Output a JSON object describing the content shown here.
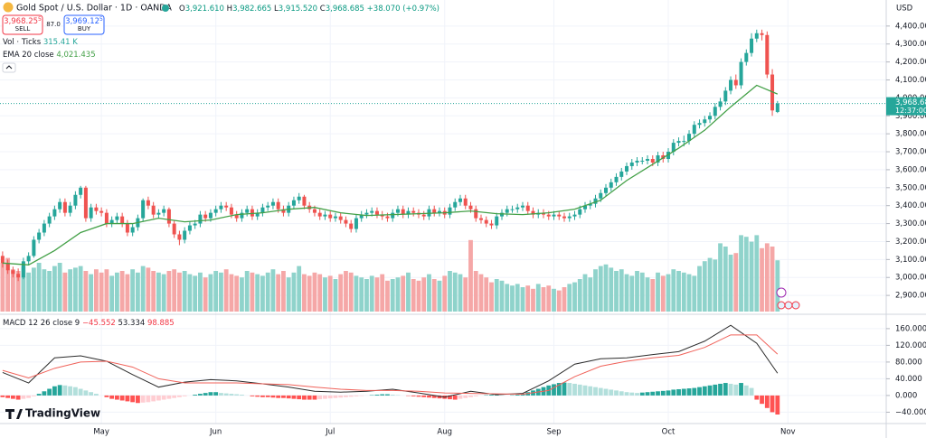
{
  "chart_data": {
    "type": "candlestick",
    "title": "Gold Spot / U.S. Dollar · 1D · OANDA",
    "currency": "USD",
    "ohlc_legend": {
      "letters": [
        "O",
        "H",
        "L",
        "C"
      ],
      "open": "3,921.610",
      "high": "3,982.665",
      "low": "3,915.520",
      "close": "3,968.685",
      "change": "+38.070 (+0.97%)"
    },
    "trade": {
      "sell_price": "3,968.25",
      "sell_pip": "5",
      "sell_label": "SELL",
      "spread": "87.0",
      "buy_price": "3,969.12",
      "buy_pip": "5",
      "buy_label": "BUY"
    },
    "last_price_label": "3,968.685",
    "countdown": "12:37:00",
    "up_color": "#26a69a",
    "down_color": "#ef5350",
    "grid": true,
    "xlim": [
      -0.5,
      169.9
    ],
    "xticks": [
      {
        "value": 19,
        "label": "May"
      },
      {
        "value": 41,
        "label": "Jun"
      },
      {
        "value": 63,
        "label": "Jul"
      },
      {
        "value": 85,
        "label": "Aug"
      },
      {
        "value": 106,
        "label": "Sep"
      },
      {
        "value": 128,
        "label": "Oct"
      },
      {
        "value": 151,
        "label": "Nov"
      }
    ],
    "ylim": [
      2795,
      4545
    ],
    "yticks": [
      {
        "value": 2900,
        "label": "2,900.000"
      },
      {
        "value": 3000,
        "label": "3,000.000"
      },
      {
        "value": 3100,
        "label": "3,100.000"
      },
      {
        "value": 3200,
        "label": "3,200.000"
      },
      {
        "value": 3300,
        "label": "3,300.000"
      },
      {
        "value": 3400,
        "label": "3,400.000"
      },
      {
        "value": 3500,
        "label": "3,500.000"
      },
      {
        "value": 3600,
        "label": "3,600.000"
      },
      {
        "value": 3700,
        "label": "3,700.000"
      },
      {
        "value": 3800,
        "label": "3,800.000"
      },
      {
        "value": 3900,
        "label": "3,900.000"
      },
      {
        "value": 4000,
        "label": "4,000.000"
      },
      {
        "value": 4100,
        "label": "4,100.000"
      },
      {
        "value": 4200,
        "label": "4,200.000"
      },
      {
        "value": 4300,
        "label": "4,300.000"
      },
      {
        "value": 4400,
        "label": "4,400.000"
      }
    ],
    "candles": {
      "open": [
        3120,
        3080,
        3040,
        3020,
        3000,
        3090,
        3120,
        3210,
        3250,
        3300,
        3340,
        3380,
        3420,
        3360,
        3400,
        3460,
        3500,
        3330,
        3390,
        3370,
        3360,
        3300,
        3320,
        3340,
        3300,
        3250,
        3280,
        3330,
        3430,
        3400,
        3350,
        3360,
        3380,
        3300,
        3240,
        3210,
        3260,
        3290,
        3300,
        3350,
        3330,
        3360,
        3380,
        3400,
        3390,
        3350,
        3330,
        3360,
        3380,
        3340,
        3360,
        3390,
        3400,
        3420,
        3380,
        3360,
        3400,
        3430,
        3450,
        3400,
        3380,
        3360,
        3340,
        3350,
        3330,
        3340,
        3320,
        3300,
        3270,
        3330,
        3350,
        3360,
        3370,
        3350,
        3340,
        3330,
        3360,
        3380,
        3350,
        3370,
        3360,
        3350,
        3340,
        3380,
        3360,
        3370,
        3350,
        3390,
        3420,
        3440,
        3400,
        3380,
        3330,
        3320,
        3300,
        3290,
        3340,
        3360,
        3380,
        3380,
        3390,
        3400,
        3370,
        3350,
        3360,
        3350,
        3340,
        3350,
        3340,
        3330,
        3340,
        3350,
        3380,
        3400,
        3410,
        3440,
        3470,
        3500,
        3530,
        3560,
        3590,
        3620,
        3640,
        3650,
        3650,
        3660,
        3640,
        3680,
        3660,
        3700,
        3750,
        3760,
        3760,
        3800,
        3850,
        3860,
        3880,
        3900,
        3950,
        3980,
        4040,
        4100,
        4070,
        4200,
        4250,
        4330,
        4360,
        4350,
        4130,
        3921.61
      ],
      "high": [
        3145,
        3100,
        3060,
        3050,
        3110,
        3140,
        3230,
        3270,
        3320,
        3360,
        3400,
        3440,
        3440,
        3420,
        3480,
        3510,
        3510,
        3410,
        3410,
        3390,
        3380,
        3340,
        3360,
        3360,
        3320,
        3300,
        3350,
        3440,
        3450,
        3420,
        3380,
        3400,
        3390,
        3320,
        3260,
        3280,
        3310,
        3320,
        3370,
        3370,
        3380,
        3400,
        3420,
        3420,
        3410,
        3370,
        3380,
        3400,
        3400,
        3380,
        3410,
        3420,
        3440,
        3440,
        3400,
        3420,
        3450,
        3470,
        3460,
        3420,
        3400,
        3380,
        3370,
        3370,
        3360,
        3360,
        3340,
        3320,
        3350,
        3370,
        3380,
        3390,
        3390,
        3370,
        3360,
        3380,
        3400,
        3400,
        3390,
        3390,
        3380,
        3370,
        3400,
        3400,
        3390,
        3390,
        3410,
        3440,
        3460,
        3460,
        3420,
        3400,
        3350,
        3340,
        3320,
        3360,
        3380,
        3400,
        3400,
        3410,
        3420,
        3420,
        3390,
        3380,
        3380,
        3370,
        3370,
        3370,
        3360,
        3360,
        3370,
        3400,
        3420,
        3430,
        3460,
        3490,
        3520,
        3550,
        3580,
        3610,
        3640,
        3660,
        3670,
        3670,
        3680,
        3680,
        3700,
        3700,
        3720,
        3770,
        3780,
        3790,
        3820,
        3870,
        3880,
        3900,
        3920,
        3970,
        4000,
        4060,
        4120,
        4130,
        4220,
        4270,
        4360,
        4380,
        4380,
        4370,
        4160,
        3982.665
      ],
      "low": [
        3055,
        3020,
        3000,
        2980,
        2990,
        3070,
        3110,
        3190,
        3230,
        3280,
        3320,
        3360,
        3340,
        3340,
        3380,
        3440,
        3310,
        3310,
        3350,
        3340,
        3280,
        3280,
        3300,
        3280,
        3230,
        3230,
        3260,
        3310,
        3380,
        3330,
        3330,
        3340,
        3280,
        3220,
        3180,
        3190,
        3240,
        3270,
        3280,
        3310,
        3310,
        3340,
        3360,
        3370,
        3330,
        3310,
        3310,
        3340,
        3320,
        3320,
        3340,
        3370,
        3380,
        3360,
        3340,
        3340,
        3380,
        3410,
        3380,
        3360,
        3340,
        3320,
        3320,
        3310,
        3310,
        3300,
        3280,
        3250,
        3250,
        3310,
        3330,
        3340,
        3330,
        3320,
        3310,
        3310,
        3340,
        3330,
        3330,
        3340,
        3330,
        3320,
        3320,
        3340,
        3340,
        3330,
        3330,
        3370,
        3400,
        3380,
        3360,
        3310,
        3300,
        3280,
        3270,
        3270,
        3320,
        3340,
        3360,
        3360,
        3370,
        3350,
        3330,
        3330,
        3330,
        3320,
        3320,
        3320,
        3310,
        3310,
        3320,
        3330,
        3360,
        3380,
        3390,
        3420,
        3450,
        3480,
        3510,
        3540,
        3570,
        3600,
        3620,
        3630,
        3630,
        3620,
        3620,
        3640,
        3640,
        3680,
        3730,
        3730,
        3740,
        3780,
        3830,
        3840,
        3860,
        3880,
        3930,
        3960,
        4020,
        4050,
        4050,
        4180,
        4230,
        4310,
        4320,
        4110,
        3900,
        3915.52
      ],
      "close": [
        3080,
        3040,
        3020,
        3000,
        3090,
        3120,
        3210,
        3250,
        3300,
        3340,
        3380,
        3420,
        3360,
        3400,
        3460,
        3500,
        3330,
        3390,
        3370,
        3360,
        3300,
        3320,
        3340,
        3300,
        3250,
        3280,
        3330,
        3430,
        3400,
        3350,
        3360,
        3380,
        3300,
        3240,
        3210,
        3260,
        3290,
        3300,
        3350,
        3330,
        3360,
        3380,
        3400,
        3390,
        3350,
        3330,
        3360,
        3380,
        3340,
        3360,
        3390,
        3400,
        3420,
        3380,
        3360,
        3400,
        3430,
        3450,
        3400,
        3380,
        3360,
        3340,
        3350,
        3330,
        3340,
        3320,
        3300,
        3270,
        3330,
        3350,
        3360,
        3370,
        3350,
        3340,
        3330,
        3360,
        3380,
        3350,
        3370,
        3360,
        3350,
        3340,
        3380,
        3360,
        3370,
        3350,
        3390,
        3420,
        3440,
        3400,
        3380,
        3330,
        3320,
        3300,
        3290,
        3340,
        3360,
        3380,
        3380,
        3390,
        3400,
        3370,
        3350,
        3360,
        3350,
        3340,
        3350,
        3340,
        3330,
        3340,
        3350,
        3380,
        3400,
        3410,
        3440,
        3470,
        3500,
        3530,
        3560,
        3590,
        3620,
        3640,
        3650,
        3650,
        3660,
        3640,
        3680,
        3660,
        3700,
        3750,
        3760,
        3760,
        3800,
        3850,
        3860,
        3880,
        3900,
        3950,
        3980,
        4040,
        4100,
        4070,
        4200,
        4250,
        4330,
        4360,
        4350,
        4130,
        3930,
        3968.685
      ]
    },
    "volume": {
      "name": "Vol · Ticks",
      "last_label": "315.41 K",
      "ylim": [
        0,
        600
      ],
      "up_color": "#8fd3cb",
      "down_color": "#f5a7a7",
      "values": [
        300,
        330,
        260,
        250,
        280,
        240,
        270,
        300,
        260,
        250,
        280,
        300,
        240,
        260,
        270,
        280,
        250,
        230,
        260,
        240,
        260,
        220,
        240,
        250,
        230,
        260,
        240,
        280,
        270,
        250,
        240,
        230,
        250,
        260,
        240,
        250,
        230,
        220,
        240,
        210,
        230,
        250,
        240,
        260,
        230,
        220,
        210,
        250,
        240,
        230,
        220,
        240,
        260,
        230,
        250,
        210,
        240,
        280,
        230,
        220,
        240,
        230,
        210,
        220,
        200,
        230,
        250,
        240,
        220,
        210,
        200,
        220,
        210,
        230,
        190,
        200,
        210,
        220,
        240,
        200,
        190,
        210,
        230,
        200,
        190,
        220,
        250,
        240,
        230,
        210,
        440,
        250,
        230,
        210,
        180,
        200,
        190,
        170,
        160,
        170,
        150,
        160,
        140,
        170,
        150,
        160,
        140,
        130,
        150,
        170,
        180,
        200,
        230,
        210,
        260,
        280,
        290,
        270,
        250,
        260,
        230,
        220,
        250,
        240,
        210,
        200,
        240,
        220,
        230,
        260,
        250,
        240,
        230,
        220,
        280,
        310,
        330,
        320,
        420,
        400,
        350,
        360,
        470,
        460,
        430,
        470,
        390,
        420,
        400,
        315.41
      ]
    },
    "ema": {
      "name": "EMA 20 close",
      "last_label": "4,021.435",
      "color": "#43a047",
      "x": [
        0,
        5,
        10,
        15,
        20,
        25,
        30,
        35,
        40,
        45,
        50,
        55,
        60,
        65,
        70,
        75,
        80,
        85,
        90,
        95,
        100,
        105,
        110,
        115,
        120,
        125,
        130,
        135,
        140,
        145,
        149
      ],
      "values": [
        3080,
        3070,
        3150,
        3250,
        3300,
        3300,
        3330,
        3310,
        3320,
        3350,
        3360,
        3380,
        3390,
        3360,
        3345,
        3350,
        3355,
        3360,
        3370,
        3355,
        3350,
        3360,
        3380,
        3430,
        3540,
        3630,
        3720,
        3820,
        3950,
        4070,
        4021.435
      ]
    },
    "macd": {
      "name": "MACD 12 26 close 9",
      "hist_label": "−45.552",
      "macd_label": "53.334",
      "signal_label": "98.885",
      "ylim": [
        -65,
        190
      ],
      "yticks": [
        {
          "value": 160,
          "label": "160.000"
        },
        {
          "value": 120,
          "label": "120.000"
        },
        {
          "value": 80,
          "label": "80.000"
        },
        {
          "value": 40,
          "label": "40.000"
        },
        {
          "value": 0,
          "label": "0.000"
        },
        {
          "value": -40,
          "label": "−40.000"
        }
      ],
      "x": [
        0,
        5,
        10,
        15,
        20,
        25,
        30,
        35,
        40,
        45,
        50,
        55,
        60,
        65,
        70,
        75,
        80,
        85,
        90,
        95,
        100,
        105,
        110,
        115,
        120,
        125,
        130,
        135,
        140,
        145,
        149
      ],
      "macd_color": "#2b2b2b",
      "signal_color": "#f0625a",
      "hist_colors": {
        "rise_pos": "#26a69a",
        "fall_pos": "#b2dfdb",
        "fall_neg": "#ff5252",
        "rise_neg": "#ffcdd2"
      },
      "macd_values": [
        55,
        30,
        90,
        95,
        82,
        50,
        20,
        32,
        38,
        35,
        28,
        20,
        10,
        8,
        10,
        15,
        6,
        -4,
        10,
        2,
        5,
        35,
        75,
        88,
        90,
        98,
        105,
        130,
        168,
        125,
        53.334
      ],
      "signal_values": [
        60,
        42,
        65,
        80,
        82,
        68,
        40,
        30,
        30,
        30,
        28,
        26,
        20,
        15,
        12,
        12,
        10,
        6,
        5,
        4,
        3,
        12,
        45,
        70,
        82,
        90,
        96,
        115,
        145,
        145,
        98.885
      ],
      "histogram": [
        -4,
        -6,
        -8,
        -10,
        -8,
        -6,
        -2,
        4,
        10,
        16,
        22,
        25,
        24,
        22,
        20,
        16,
        12,
        8,
        4,
        0,
        -4,
        -8,
        -10,
        -12,
        -14,
        -16,
        -18,
        -17,
        -16,
        -14,
        -12,
        -10,
        -8,
        -6,
        -4,
        -2,
        0,
        2,
        4,
        6,
        8,
        8,
        6,
        5,
        4,
        3,
        2,
        0,
        -2,
        -3,
        -4,
        -4,
        -5,
        -6,
        -6,
        -7,
        -8,
        -9,
        -10,
        -10,
        -10,
        -9,
        -8,
        -7,
        -6,
        -5,
        -4,
        -3,
        -2,
        -1,
        0,
        1,
        2,
        3,
        3,
        2,
        1,
        0,
        -1,
        -2,
        -3,
        -4,
        -5,
        -6,
        -7,
        -8,
        -9,
        -10,
        -8,
        -6,
        -4,
        -2,
        0,
        1,
        2,
        2,
        1,
        0,
        1,
        2,
        4,
        8,
        12,
        16,
        20,
        24,
        27,
        30,
        31,
        30,
        28,
        26,
        24,
        22,
        20,
        18,
        16,
        14,
        12,
        10,
        8,
        7,
        6,
        7,
        8,
        9,
        10,
        11,
        12,
        14,
        15,
        16,
        17,
        18,
        20,
        22,
        24,
        26,
        28,
        30,
        28,
        26,
        30,
        24,
        18,
        -10,
        -20,
        -30,
        -40,
        -45.552
      ]
    },
    "brand": "TradingView"
  }
}
